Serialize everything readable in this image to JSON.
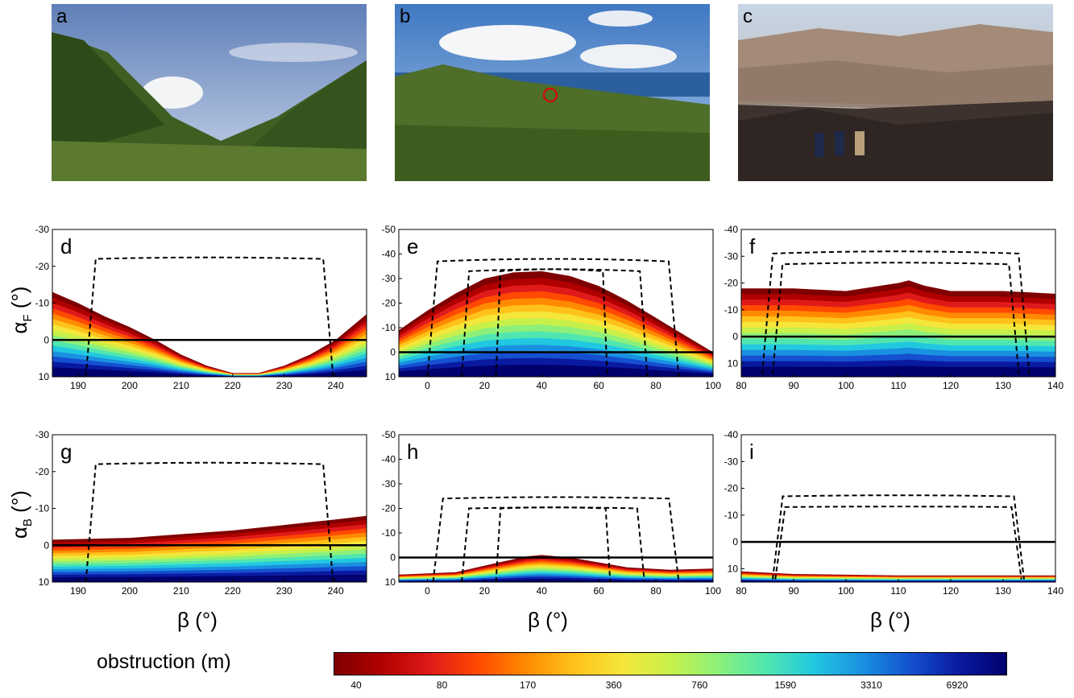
{
  "photos": [
    {
      "letter": "a",
      "description_icon": "mountain-valley-photo"
    },
    {
      "letter": "b",
      "description_icon": "grassy-hillside-photo"
    },
    {
      "letter": "c",
      "description_icon": "volcanic-slope-with-people-photo"
    }
  ],
  "row_labels": {
    "top": "α",
    "top_sub": "F",
    "bottom": "α",
    "bottom_sub": "B",
    "unit": " (°)"
  },
  "x_label": "β (°)",
  "colorbar": {
    "title": "obstruction (m)",
    "ticks": [
      "40",
      "80",
      "170",
      "360",
      "760",
      "1590",
      "3310",
      "6920"
    ],
    "colors": [
      "#7f0000",
      "#b00000",
      "#e01a1a",
      "#ff4a00",
      "#ff8a00",
      "#ffc21a",
      "#f5e63a",
      "#c8f04a",
      "#8cf07a",
      "#4fe6b0",
      "#22c8e0",
      "#1a90e0",
      "#1450d0",
      "#0a1aa0",
      "#00006e"
    ]
  },
  "chart_data": [
    {
      "type": "area",
      "panel": "d",
      "xlim": [
        185,
        246
      ],
      "ylim": [
        10,
        -30
      ],
      "xticks": [
        190,
        200,
        210,
        220,
        230,
        240
      ],
      "yticks": [
        -30,
        -20,
        -10,
        0,
        10
      ],
      "profile_x": [
        185,
        190,
        195,
        200,
        205,
        210,
        215,
        220,
        225,
        230,
        235,
        240,
        246
      ],
      "profile_y": [
        -13,
        -10,
        -6.5,
        -3.5,
        0,
        4,
        7,
        9,
        9,
        7,
        4,
        0,
        -7
      ],
      "dashed_rects": [
        {
          "x0": 191.5,
          "x1": 239.5,
          "ytop_edge": -22,
          "ytop_mid": -24,
          "ybot": 10
        }
      ]
    },
    {
      "type": "area",
      "panel": "e",
      "xlim": [
        -10,
        100
      ],
      "ylim": [
        10,
        -50
      ],
      "xticks": [
        0,
        20,
        40,
        60,
        80,
        100
      ],
      "yticks": [
        -50,
        -40,
        -30,
        -20,
        -10,
        0,
        10
      ],
      "profile_x": [
        -10,
        0,
        10,
        20,
        30,
        40,
        50,
        60,
        70,
        80,
        90,
        100
      ],
      "profile_y": [
        -9,
        -17,
        -24,
        -30,
        -32.5,
        -33,
        -31,
        -27,
        -21,
        -14,
        -7,
        0
      ],
      "dashed_rects": [
        {
          "x0": 0,
          "x1": 88,
          "ytop_edge": -37,
          "ytop_mid": -42,
          "ybot": 10
        },
        {
          "x0": 12,
          "x1": 77,
          "ytop_edge": -33,
          "ytop_mid": -37,
          "ybot": 10
        },
        {
          "x0": 24,
          "x1": 63,
          "ytop_edge": -33,
          "ytop_mid": -37,
          "ybot": 10
        }
      ]
    },
    {
      "type": "area",
      "panel": "f",
      "xlim": [
        80,
        140
      ],
      "ylim": [
        15,
        -40
      ],
      "xticks": [
        80,
        90,
        100,
        110,
        120,
        130,
        140
      ],
      "yticks": [
        -40,
        -30,
        -20,
        -10,
        0,
        10
      ],
      "profile_x": [
        80,
        90,
        100,
        105,
        110,
        112,
        115,
        120,
        130,
        140
      ],
      "profile_y": [
        -18,
        -18,
        -17,
        -18.5,
        -20,
        -21,
        -19,
        -17,
        -17,
        -16
      ],
      "dashed_rects": [
        {
          "x0": 84,
          "x1": 135,
          "ytop_edge": -31,
          "ytop_mid": -35,
          "ybot": 14
        },
        {
          "x0": 86,
          "x1": 133,
          "ytop_edge": -27,
          "ytop_mid": -30,
          "ybot": 14
        }
      ]
    },
    {
      "type": "area",
      "panel": "g",
      "xlim": [
        185,
        246
      ],
      "ylim": [
        10,
        -30
      ],
      "xticks": [
        190,
        200,
        210,
        220,
        230,
        240
      ],
      "yticks": [
        -30,
        -20,
        -10,
        0,
        10
      ],
      "profile_x": [
        185,
        200,
        210,
        220,
        230,
        240,
        246
      ],
      "profile_y": [
        -1.5,
        -2,
        -3,
        -4,
        -5.5,
        -7,
        -8
      ],
      "dashed_rects": [
        {
          "x0": 191.5,
          "x1": 239.5,
          "ytop_edge": -22,
          "ytop_mid": -24,
          "ybot": 10
        }
      ]
    },
    {
      "type": "area",
      "panel": "h",
      "xlim": [
        -10,
        100
      ],
      "ylim": [
        10,
        -50
      ],
      "xticks": [
        0,
        20,
        40,
        60,
        80,
        100
      ],
      "yticks": [
        -50,
        -40,
        -30,
        -20,
        -10,
        0,
        10
      ],
      "profile_x": [
        -10,
        10,
        25,
        35,
        40,
        50,
        60,
        70,
        85,
        100
      ],
      "profile_y": [
        7,
        6,
        2,
        -0.5,
        -1,
        0,
        2,
        4,
        5,
        4.5
      ],
      "dashed_rects": [
        {
          "x0": 2,
          "x1": 88,
          "ytop_edge": -24,
          "ytop_mid": -27,
          "ybot": 10
        },
        {
          "x0": 12,
          "x1": 76,
          "ytop_edge": -20,
          "ytop_mid": -22,
          "ybot": 10
        },
        {
          "x0": 24,
          "x1": 64,
          "ytop_edge": -20,
          "ytop_mid": -22,
          "ybot": 10
        }
      ]
    },
    {
      "type": "area",
      "panel": "i",
      "xlim": [
        80,
        140
      ],
      "ylim": [
        15,
        -40
      ],
      "xticks": [
        80,
        90,
        100,
        110,
        120,
        130,
        140
      ],
      "yticks": [
        -40,
        -30,
        -20,
        -10,
        0,
        10
      ],
      "profile_x": [
        80,
        90,
        110,
        130,
        140
      ],
      "profile_y": [
        11,
        12,
        12.5,
        12.5,
        12.5
      ],
      "dashed_rects": [
        {
          "x0": 86,
          "x1": 134,
          "ytop_edge": -17,
          "ytop_mid": -19,
          "ybot": 14
        },
        {
          "x0": 86.5,
          "x1": 133.5,
          "ytop_edge": -13,
          "ytop_mid": -14,
          "ybot": 14
        }
      ]
    }
  ]
}
